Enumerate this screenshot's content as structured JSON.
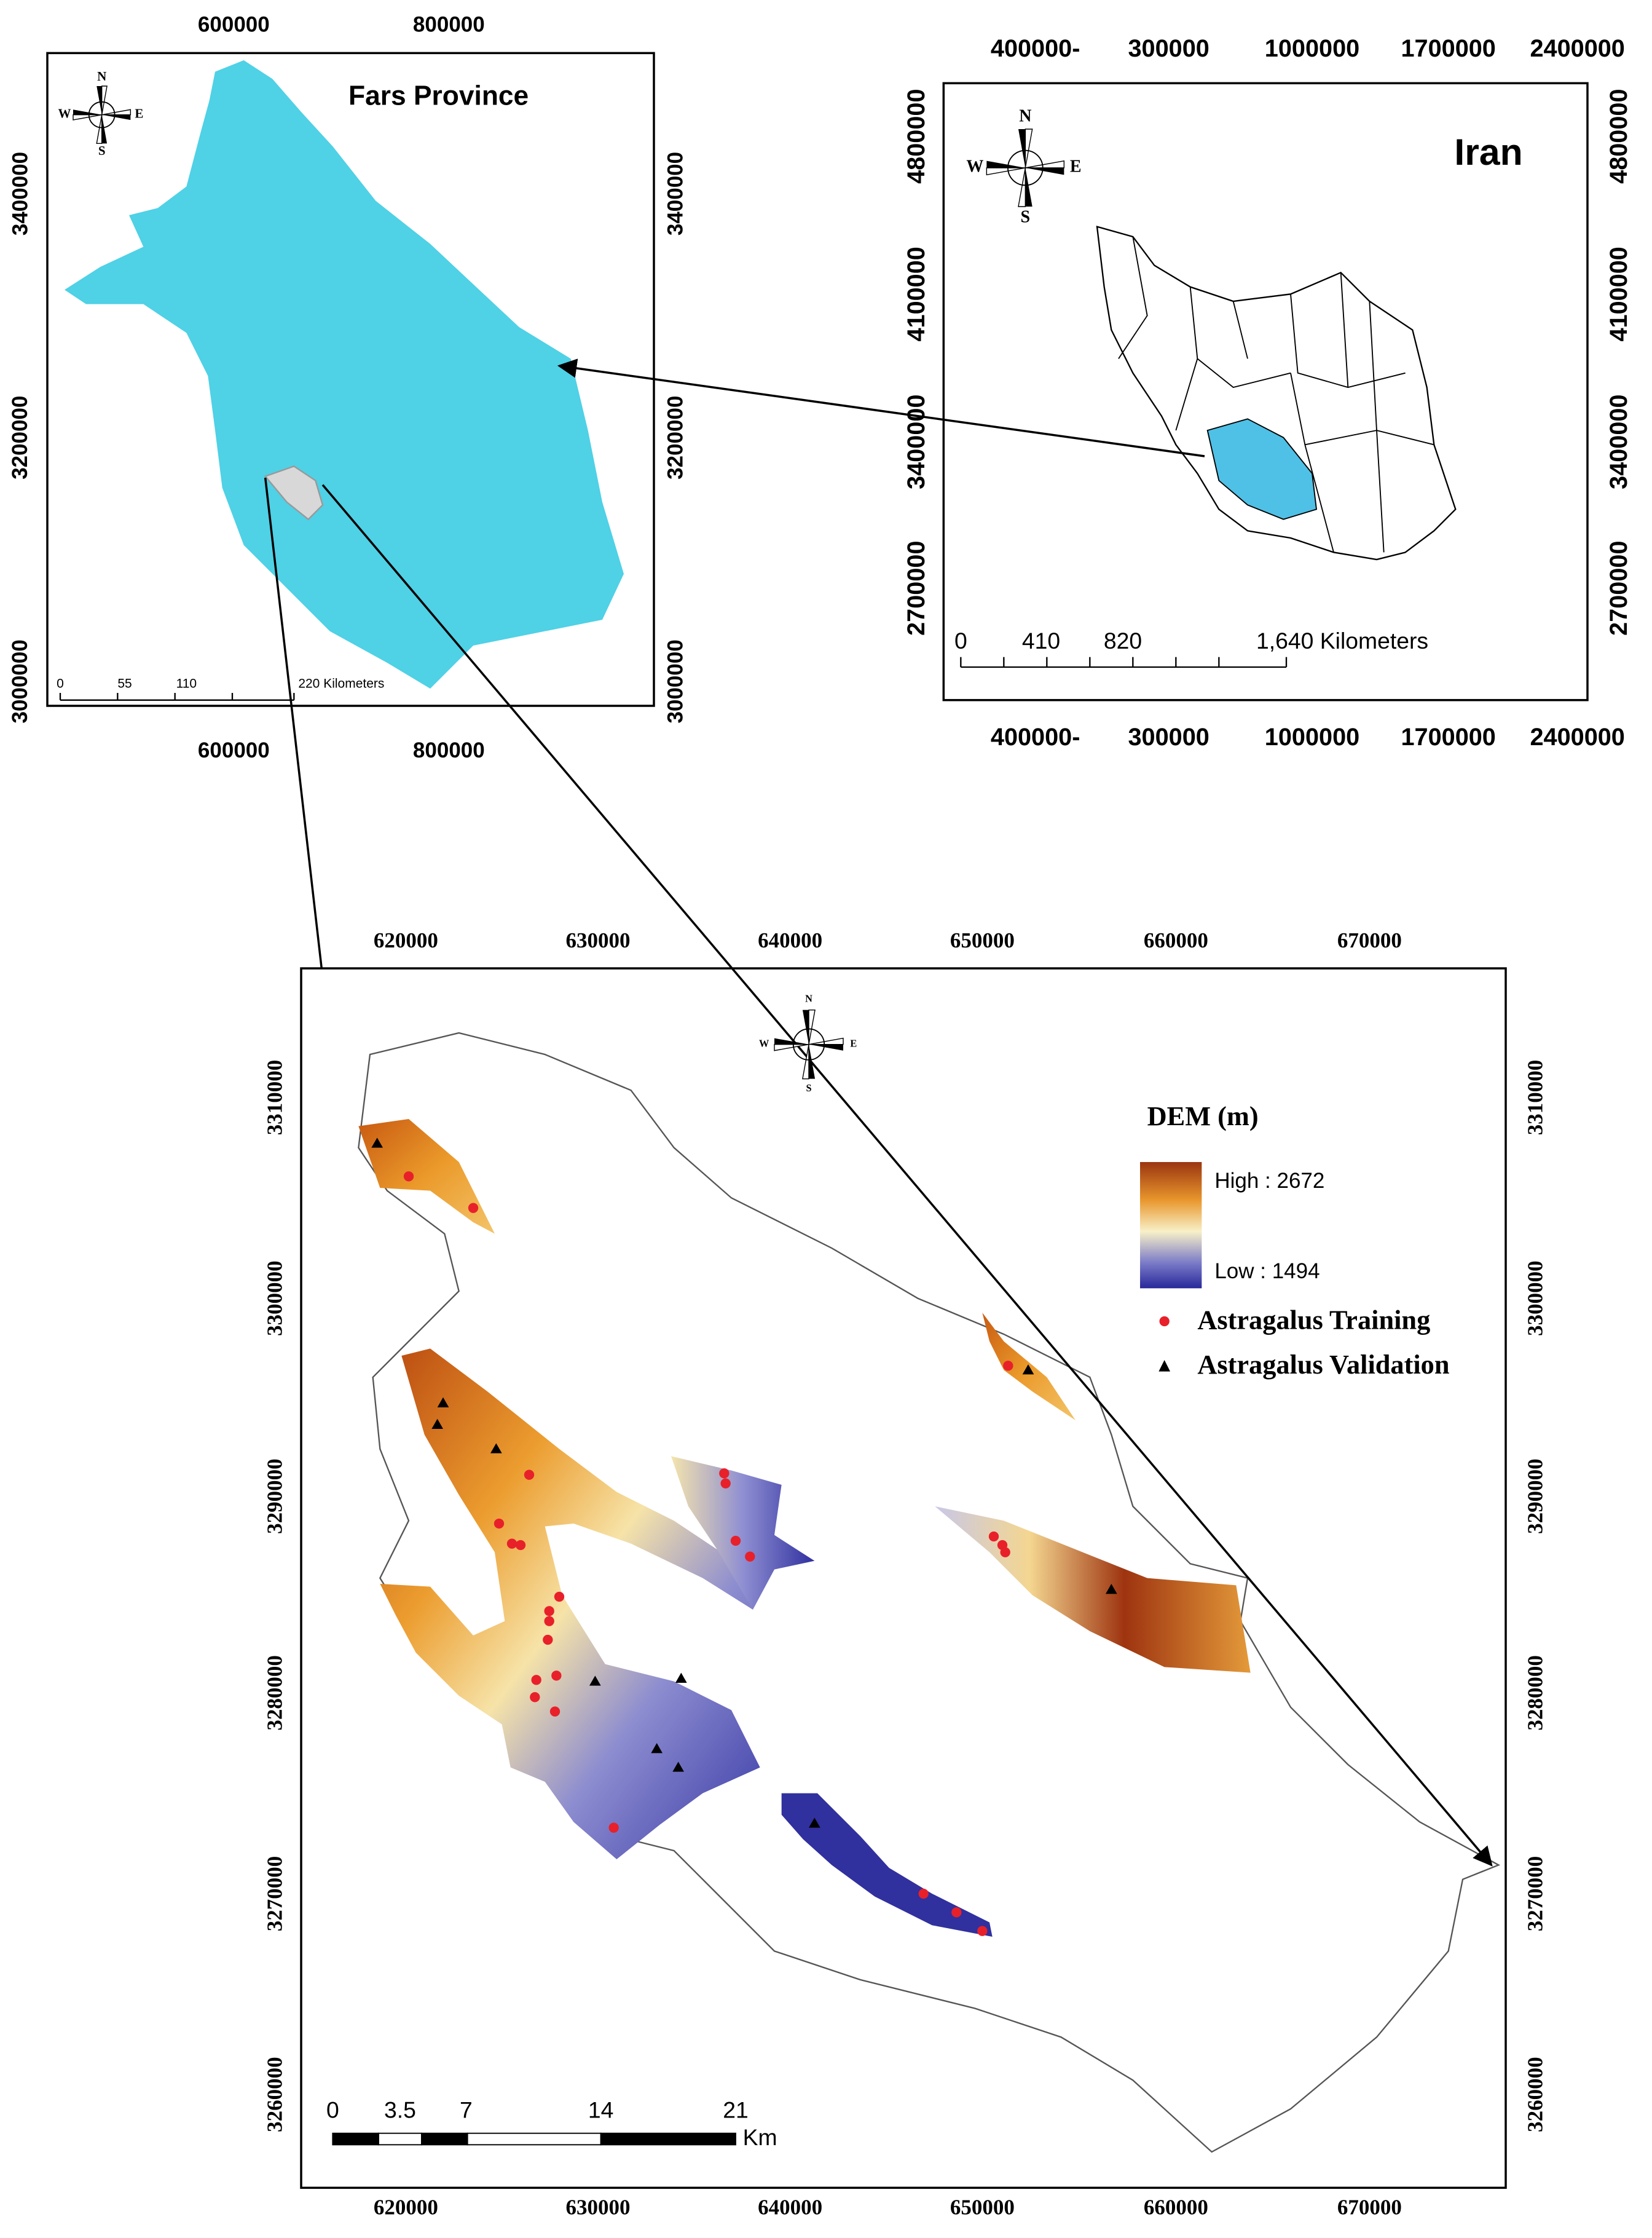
{
  "fars_map": {
    "title": "Fars Province",
    "x_ticks": [
      "600000",
      "800000"
    ],
    "y_ticks": [
      "3400000",
      "3200000",
      "3000000"
    ],
    "scale": [
      "0",
      "55",
      "110",
      "220 Kilometers"
    ],
    "compass": [
      "N",
      "E",
      "S",
      "W"
    ]
  },
  "iran_map": {
    "title": "Iran",
    "x_ticks": [
      "400000-",
      "300000",
      "1000000",
      "1700000",
      "2400000"
    ],
    "y_ticks": [
      "4800000",
      "4100000",
      "3400000",
      "2700000"
    ],
    "scale": [
      "0",
      "410",
      "820",
      "1,640 Kilometers"
    ],
    "compass": [
      "N",
      "E",
      "S",
      "W"
    ]
  },
  "study_map": {
    "x_ticks": [
      "620000",
      "630000",
      "640000",
      "650000",
      "660000",
      "670000"
    ],
    "y_ticks": [
      "3310000",
      "3300000",
      "3290000",
      "3280000",
      "3270000",
      "3260000"
    ],
    "legend": {
      "title": "DEM (m)",
      "high": "High : 2672",
      "low": "Low : 1494",
      "training": "Astragalus Training",
      "validation": "Astragalus Validation"
    },
    "scale": [
      "0",
      "3.5",
      "7",
      "14",
      "21",
      "Km"
    ],
    "compass": [
      "N",
      "E",
      "S",
      "W"
    ]
  }
}
